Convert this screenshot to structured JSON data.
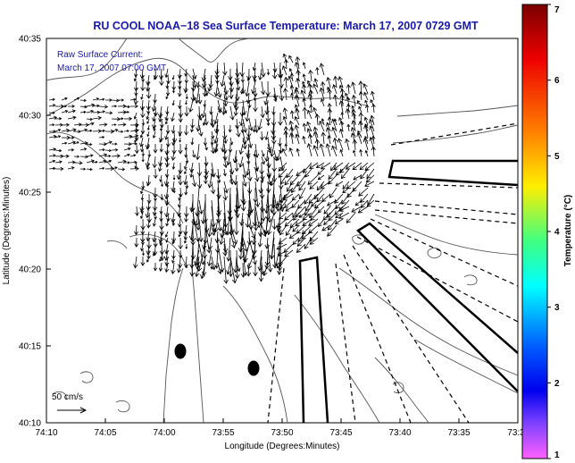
{
  "title": "RU COOL  NOAA−18  Sea Surface Temperature:  March 17, 2007 0729 GMT",
  "annotation": {
    "line1": "Raw Surface Current:",
    "line2": "March 17, 2007 07:00 GMT"
  },
  "axes": {
    "xlabel": "Longitude (Degrees:Minutes)",
    "ylabel": "Latitude (Degrees:Minutes)",
    "xticks": [
      "74:10",
      "74:05",
      "74:00",
      "73:55",
      "73:50",
      "73:45",
      "73:40",
      "73:35",
      "73:3"
    ],
    "yticks": [
      "40:35",
      "40:30",
      "40:25",
      "40:20",
      "40:15",
      "40:10"
    ]
  },
  "scale": {
    "label": "50 cm/s"
  },
  "colorbar": {
    "label": "Temperature (°C)",
    "ticks": [
      "7",
      "6",
      "5",
      "4",
      "3",
      "2",
      "1"
    ],
    "colors": [
      "#8b0000",
      "#ff0000",
      "#ff8000",
      "#ffff00",
      "#00ff80",
      "#00ffff",
      "#0080ff",
      "#0000ff",
      "#8000ff",
      "#ff80ff"
    ]
  }
}
